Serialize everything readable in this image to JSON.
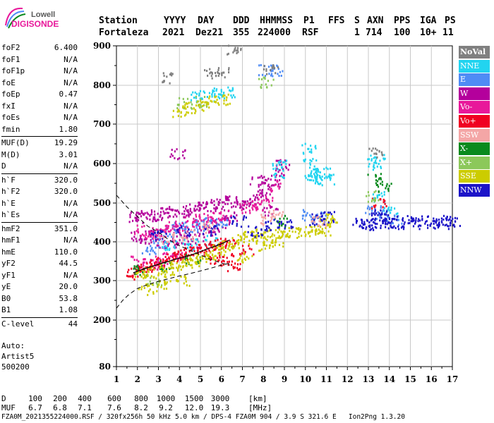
{
  "logo": {
    "line1": "Lowell",
    "line2": "DIGISONDE"
  },
  "header": {
    "labels": [
      "Station",
      "YYYY",
      "DAY",
      "DDD",
      "HHMMSS",
      "P1",
      "FFS",
      "S",
      "AXN",
      "PPS",
      "IGA",
      "PS"
    ],
    "values": [
      "Fortaleza",
      "2021",
      "Dez21",
      "355",
      "224000",
      "RSF",
      "",
      "1",
      "714",
      "100",
      "10+",
      "11"
    ]
  },
  "params": {
    "group1": [
      {
        "name": "foF2",
        "value": "6.400"
      },
      {
        "name": "foF1",
        "value": "N/A"
      },
      {
        "name": "foF1p",
        "value": "N/A"
      },
      {
        "name": "foE",
        "value": "N/A"
      },
      {
        "name": "foEp",
        "value": "0.47"
      },
      {
        "name": "fxI",
        "value": "N/A"
      },
      {
        "name": "foEs",
        "value": "N/A"
      },
      {
        "name": "fmin",
        "value": "1.80"
      }
    ],
    "group2": [
      {
        "name": "MUF(D)",
        "value": "19.29"
      },
      {
        "name": "M(D)",
        "value": "3.01"
      },
      {
        "name": "D",
        "value": "N/A"
      }
    ],
    "group3": [
      {
        "name": "h`F",
        "value": "320.0"
      },
      {
        "name": "h`F2",
        "value": "320.0"
      },
      {
        "name": "h`E",
        "value": "N/A"
      },
      {
        "name": "h`Es",
        "value": "N/A"
      }
    ],
    "group4": [
      {
        "name": "hmF2",
        "value": "351.0"
      },
      {
        "name": "hmF1",
        "value": "N/A"
      },
      {
        "name": "hmE",
        "value": "110.0"
      },
      {
        "name": "yF2",
        "value": "44.5"
      },
      {
        "name": "yF1",
        "value": "N/A"
      },
      {
        "name": "yE",
        "value": "20.0"
      },
      {
        "name": "B0",
        "value": "53.8"
      },
      {
        "name": "B1",
        "value": "1.08"
      }
    ],
    "group5": [
      {
        "name": "C-level",
        "value": "44"
      }
    ]
  },
  "auto": {
    "line1": "Auto:",
    "line2": "Artist5",
    "line3": "500200"
  },
  "legend": [
    {
      "label": "NoVal",
      "color": "#808080"
    },
    {
      "label": "NNE",
      "color": "#22d4f0"
    },
    {
      "label": "E",
      "color": "#4f8cf5"
    },
    {
      "label": "W",
      "color": "#b4009c"
    },
    {
      "label": "Vo-",
      "color": "#e8189a"
    },
    {
      "label": "Vo+",
      "color": "#f00022"
    },
    {
      "label": "SSW",
      "color": "#f4a6a6"
    },
    {
      "label": "X-",
      "color": "#0a8a1e"
    },
    {
      "label": "X+",
      "color": "#8cc85a"
    },
    {
      "label": "SSE",
      "color": "#cccc00"
    },
    {
      "label": "NNW",
      "color": "#1c14c8"
    }
  ],
  "chart_data": {
    "type": "scatter",
    "xlim": [
      1,
      17
    ],
    "ylim": [
      80,
      900
    ],
    "x_ticks": [
      "1",
      "2",
      "3",
      "4",
      "5",
      "6",
      "7",
      "8",
      "9",
      "10",
      "11",
      "12",
      "13",
      "14",
      "15",
      "16",
      "17"
    ],
    "y_ticks": [
      "900",
      "800",
      "700",
      "600",
      "500",
      "400",
      "300",
      "200",
      "80"
    ],
    "grid": true,
    "series": [
      {
        "name": "W",
        "color": "#b4009c",
        "points": [
          [
            1.9,
            465
          ],
          [
            2.2,
            470
          ],
          [
            2.6,
            470
          ],
          [
            3.0,
            470
          ],
          [
            3.4,
            475
          ],
          [
            3.8,
            480
          ],
          [
            4.2,
            480
          ],
          [
            4.6,
            485
          ],
          [
            5.0,
            490
          ],
          [
            5.4,
            495
          ],
          [
            5.8,
            500
          ],
          [
            6.2,
            505
          ],
          [
            6.6,
            505
          ],
          [
            7.0,
            500
          ],
          [
            7.4,
            505
          ],
          [
            7.8,
            520
          ],
          [
            8.1,
            535
          ],
          [
            8.4,
            555
          ],
          [
            8.7,
            580
          ],
          [
            8.9,
            600
          ],
          [
            2.0,
            415
          ],
          [
            2.4,
            410
          ],
          [
            2.8,
            420
          ],
          [
            3.2,
            400
          ],
          [
            3.6,
            395
          ],
          [
            4.0,
            420
          ],
          [
            4.4,
            410
          ],
          [
            4.8,
            400
          ],
          [
            5.2,
            430
          ],
          [
            5.6,
            440
          ],
          [
            6.0,
            450
          ],
          [
            6.4,
            470
          ],
          [
            3.9,
            625
          ],
          [
            7.7,
            560
          ],
          [
            8.3,
            480
          ]
        ]
      },
      {
        "name": "NNE",
        "color": "#22d4f0",
        "points": [
          [
            10.1,
            640
          ],
          [
            10.2,
            600
          ],
          [
            10.3,
            575
          ],
          [
            10.4,
            565
          ],
          [
            10.6,
            570
          ],
          [
            10.8,
            580
          ],
          [
            11.0,
            560
          ],
          [
            13.3,
            600
          ],
          [
            13.4,
            610
          ],
          [
            13.5,
            520
          ],
          [
            14.0,
            480
          ],
          [
            8.7,
            600
          ],
          [
            8.8,
            580
          ],
          [
            4.8,
            770
          ],
          [
            5.3,
            775
          ],
          [
            5.8,
            780
          ],
          [
            6.3,
            785
          ],
          [
            3.5,
            390
          ],
          [
            4.5,
            395
          ],
          [
            5.5,
            405
          ]
        ]
      },
      {
        "name": "E",
        "color": "#4f8cf5",
        "points": [
          [
            3.5,
            430
          ],
          [
            4.0,
            440
          ],
          [
            4.5,
            440
          ],
          [
            5.0,
            445
          ],
          [
            5.5,
            450
          ],
          [
            6.0,
            455
          ],
          [
            10.2,
            470
          ],
          [
            10.6,
            465
          ],
          [
            13.2,
            480
          ],
          [
            13.6,
            470
          ],
          [
            14.2,
            460
          ],
          [
            2.5,
            380
          ],
          [
            3.0,
            400
          ],
          [
            8.1,
            840
          ],
          [
            8.6,
            840
          ]
        ]
      },
      {
        "name": "Vo-",
        "color": "#e8189a",
        "points": [
          [
            2.2,
            430
          ],
          [
            2.7,
            425
          ],
          [
            3.2,
            430
          ],
          [
            3.6,
            440
          ],
          [
            4.1,
            445
          ],
          [
            4.6,
            455
          ],
          [
            5.1,
            460
          ],
          [
            5.6,
            465
          ],
          [
            6.1,
            470
          ],
          [
            7.2,
            490
          ],
          [
            7.6,
            495
          ],
          [
            8.1,
            510
          ],
          [
            8.6,
            545
          ],
          [
            2.0,
            350
          ],
          [
            2.6,
            345
          ],
          [
            3.1,
            350
          ],
          [
            3.5,
            360
          ],
          [
            4.0,
            370
          ]
        ]
      },
      {
        "name": "Vo+",
        "color": "#f00022",
        "points": [
          [
            1.8,
            320
          ],
          [
            2.1,
            325
          ],
          [
            2.4,
            335
          ],
          [
            2.8,
            345
          ],
          [
            3.2,
            355
          ],
          [
            3.6,
            365
          ],
          [
            4.0,
            370
          ],
          [
            4.4,
            375
          ],
          [
            4.8,
            380
          ],
          [
            5.2,
            385
          ],
          [
            5.6,
            390
          ],
          [
            6.0,
            395
          ],
          [
            6.3,
            400
          ],
          [
            5.7,
            350
          ],
          [
            6.2,
            360
          ],
          [
            6.5,
            340
          ],
          [
            7.2,
            380
          ],
          [
            13.5,
            500
          ]
        ]
      },
      {
        "name": "X-",
        "color": "#0a8a1e",
        "points": [
          [
            13.3,
            565
          ],
          [
            13.7,
            540
          ],
          [
            2.1,
            330
          ],
          [
            3.4,
            340
          ],
          [
            4.6,
            355
          ],
          [
            8.8,
            455
          ]
        ]
      },
      {
        "name": "X+",
        "color": "#8cc85a",
        "points": [
          [
            4.2,
            755
          ],
          [
            5.0,
            760
          ],
          [
            8.1,
            810
          ],
          [
            13.2,
            520
          ],
          [
            2.8,
            300
          ]
        ]
      },
      {
        "name": "SSE",
        "color": "#cccc00",
        "points": [
          [
            2.2,
            315
          ],
          [
            2.6,
            320
          ],
          [
            3.0,
            325
          ],
          [
            3.4,
            330
          ],
          [
            3.8,
            340
          ],
          [
            4.2,
            345
          ],
          [
            4.6,
            350
          ],
          [
            5.0,
            360
          ],
          [
            5.4,
            370
          ],
          [
            5.8,
            380
          ],
          [
            6.2,
            390
          ],
          [
            6.6,
            400
          ],
          [
            7.0,
            410
          ],
          [
            7.4,
            415
          ],
          [
            7.8,
            420
          ],
          [
            8.2,
            420
          ],
          [
            8.6,
            425
          ],
          [
            9.0,
            425
          ],
          [
            9.4,
            425
          ],
          [
            10.0,
            430
          ],
          [
            10.4,
            430
          ],
          [
            10.8,
            430
          ],
          [
            11.0,
            450
          ],
          [
            11.2,
            460
          ],
          [
            4.0,
            735
          ],
          [
            4.5,
            745
          ],
          [
            5.0,
            750
          ],
          [
            5.6,
            760
          ],
          [
            6.0,
            765
          ],
          [
            7.1,
            360
          ],
          [
            8.0,
            390
          ],
          [
            8.6,
            400
          ],
          [
            2.4,
            280
          ],
          [
            3.2,
            290
          ],
          [
            4.1,
            300
          ]
        ]
      },
      {
        "name": "NNW",
        "color": "#1c14c8",
        "points": [
          [
            12.6,
            455
          ],
          [
            13.0,
            450
          ],
          [
            13.2,
            445
          ],
          [
            13.4,
            465
          ],
          [
            13.6,
            470
          ],
          [
            13.8,
            450
          ],
          [
            14.0,
            455
          ],
          [
            14.4,
            450
          ],
          [
            14.8,
            455
          ],
          [
            15.2,
            450
          ],
          [
            15.6,
            455
          ],
          [
            16.0,
            450
          ],
          [
            16.4,
            450
          ],
          [
            16.8,
            455
          ],
          [
            17.0,
            450
          ],
          [
            10.5,
            460
          ],
          [
            11.0,
            465
          ],
          [
            6.8,
            455
          ],
          [
            7.6,
            430
          ],
          [
            8.4,
            445
          ],
          [
            9.0,
            450
          ],
          [
            3.0,
            420
          ],
          [
            4.2,
            430
          ],
          [
            5.4,
            430
          ]
        ]
      },
      {
        "name": "SSW",
        "color": "#f4a6a6",
        "points": [
          [
            3.4,
            410
          ],
          [
            4.4,
            420
          ],
          [
            5.4,
            440
          ],
          [
            8.2,
            460
          ],
          [
            8.6,
            470
          ],
          [
            10.6,
            455
          ]
        ]
      },
      {
        "name": "NoVal",
        "color": "#808080",
        "points": [
          [
            5.5,
            830
          ],
          [
            6.0,
            835
          ],
          [
            6.6,
            890
          ],
          [
            8.3,
            845
          ],
          [
            3.4,
            820
          ],
          [
            13.3,
            630
          ]
        ]
      }
    ],
    "profile_curve": {
      "x": [
        1.8,
        2.2,
        2.6,
        3.0,
        3.5,
        4.0,
        4.5,
        5.0,
        5.5,
        6.0,
        6.4
      ],
      "y": [
        320,
        328,
        335,
        342,
        350,
        358,
        365,
        375,
        385,
        395,
        405
      ]
    },
    "dashed_curve_upper": {
      "x": [
        1.0,
        1.5,
        2.0,
        2.5,
        3.0,
        3.5,
        4.0,
        4.5,
        5.0,
        5.5,
        6.0,
        6.4
      ],
      "y": [
        520,
        490,
        465,
        440,
        425,
        405,
        390,
        378,
        366,
        355,
        345,
        340
      ]
    },
    "dashed_curve_lower": {
      "x": [
        1.0,
        1.3,
        1.6,
        2.0,
        2.5,
        3.0,
        3.5,
        4.0,
        4.5,
        5.0,
        5.5,
        6.0,
        6.4
      ],
      "y": [
        230,
        250,
        265,
        280,
        290,
        298,
        305,
        312,
        318,
        325,
        332,
        340,
        345
      ]
    }
  },
  "footer": {
    "d_label": "D",
    "d_values": [
      "100",
      "200",
      "400",
      "600",
      "800",
      "1000",
      "1500",
      "3000",
      "[km]"
    ],
    "muf_label": "MUF",
    "muf_values": [
      "6.7",
      "6.8",
      "7.1",
      "7.6",
      "8.2",
      "9.2",
      "12.0",
      "19.3",
      "[MHz]"
    ],
    "file_line": "FZA0M_2021355224000.RSF / 320fx256h 50 kHz 5.0 km / DPS-4 FZA0M 904 / 3.9 S 321.6 E   Ion2Png 1.3.20"
  }
}
